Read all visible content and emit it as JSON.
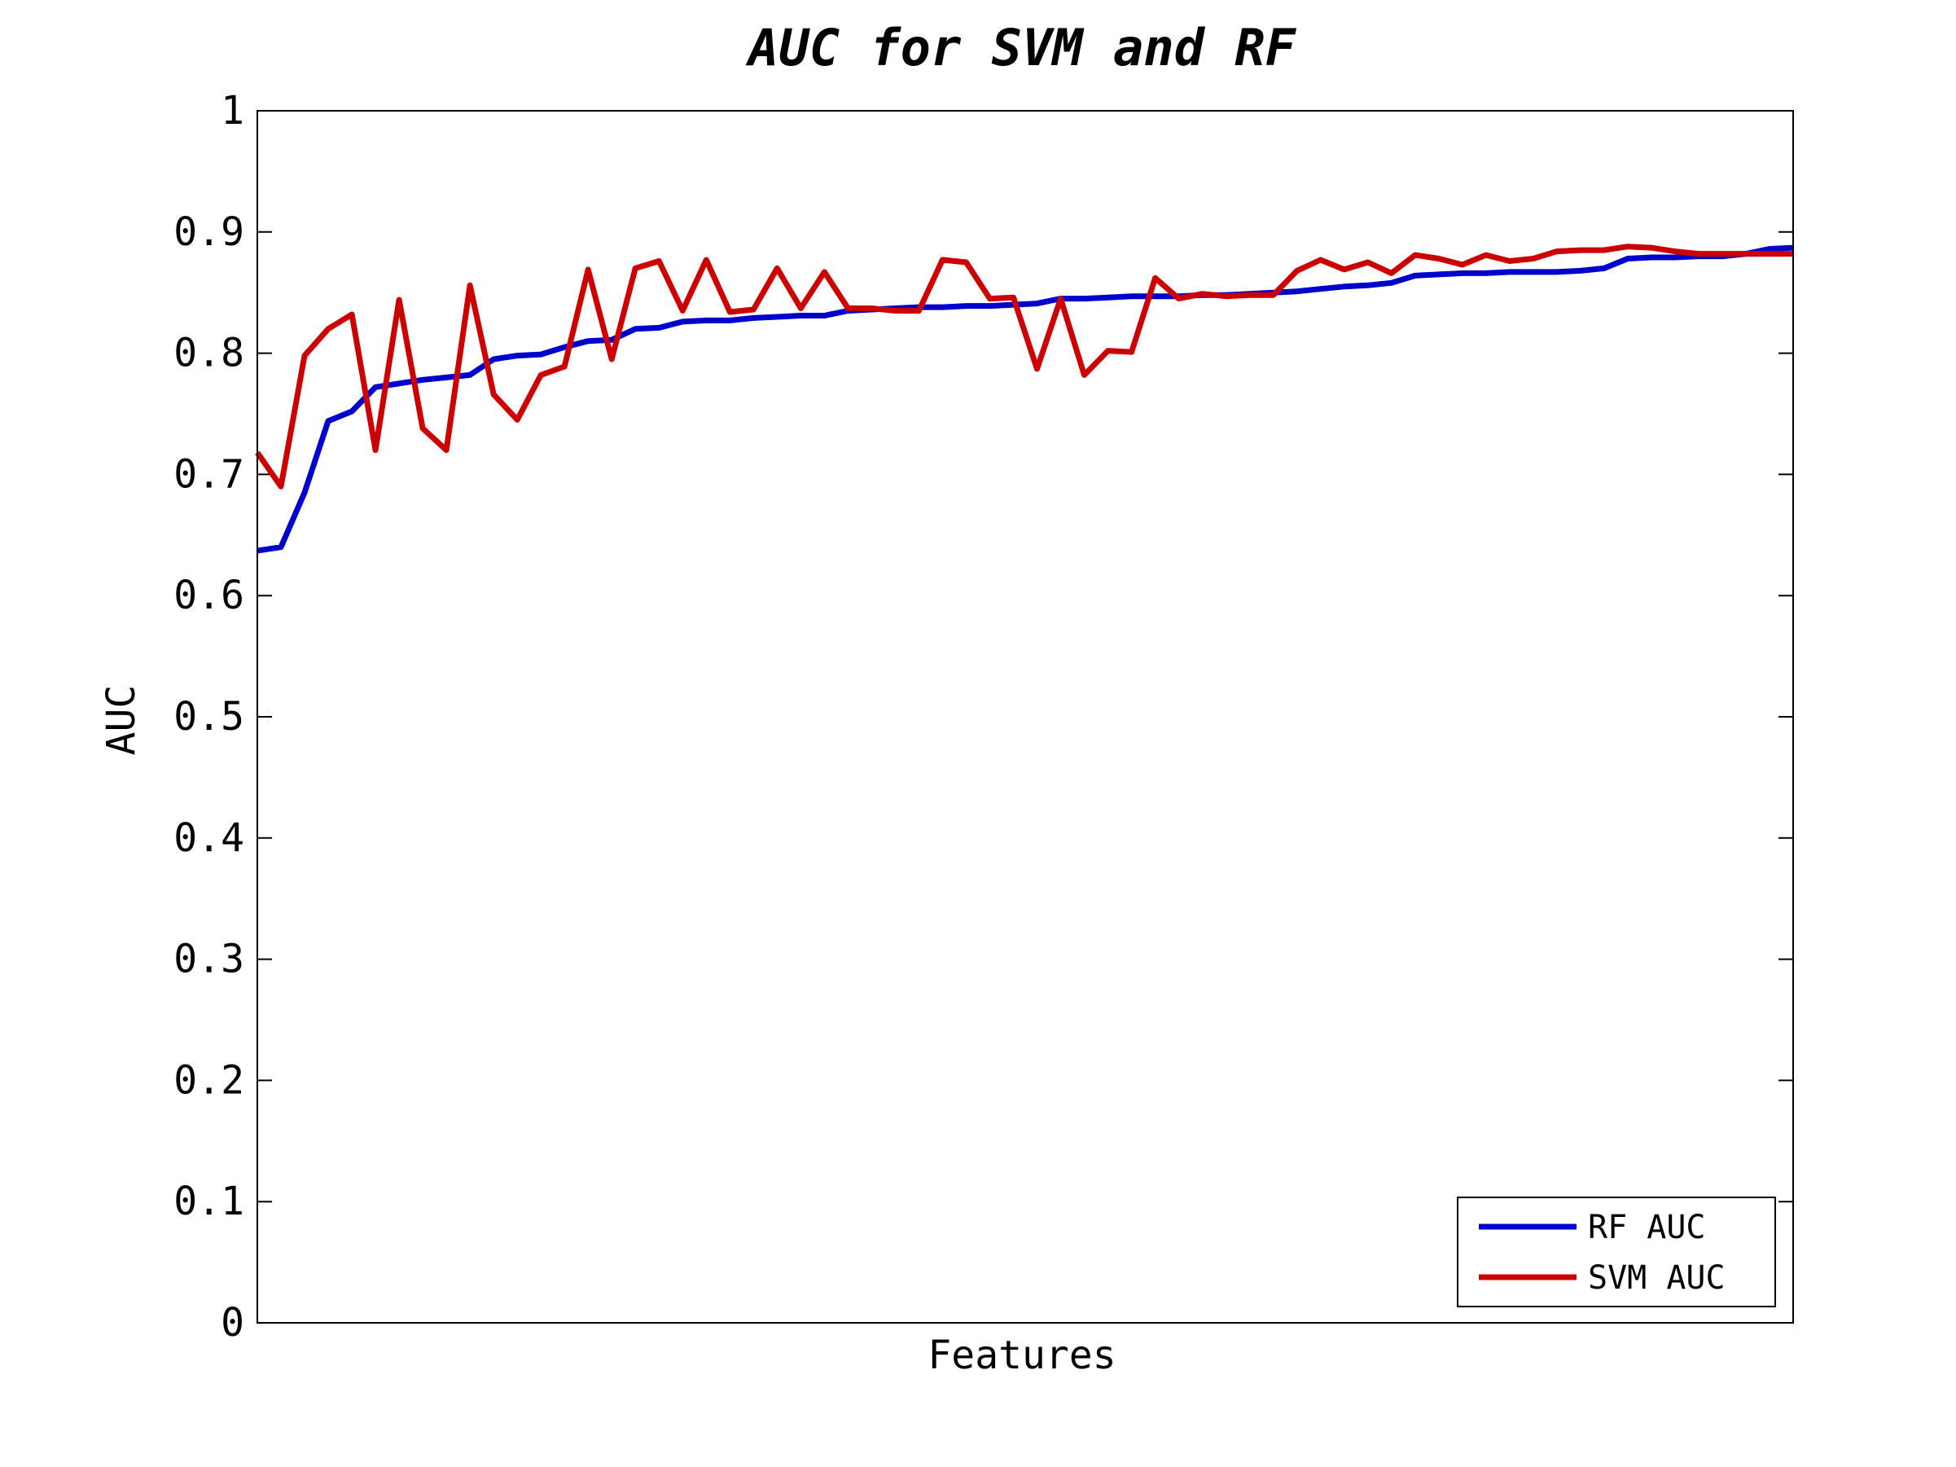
{
  "chart_data": {
    "type": "line",
    "title": "AUC for SVM and RF",
    "xlabel": "Features",
    "ylabel": "AUC",
    "ylim": [
      0,
      1
    ],
    "yticks": [
      "0",
      "0.1",
      "0.2",
      "0.3",
      "0.4",
      "0.5",
      "0.6",
      "0.7",
      "0.8",
      "0.9",
      "1"
    ],
    "grid": false,
    "legend": "bottom-right",
    "series": [
      {
        "name": "RF AUC",
        "color": "#0000cc",
        "values": [
          0.637,
          0.64,
          0.685,
          0.744,
          0.752,
          0.772,
          0.775,
          0.778,
          0.78,
          0.782,
          0.795,
          0.798,
          0.799,
          0.805,
          0.81,
          0.811,
          0.82,
          0.821,
          0.826,
          0.827,
          0.827,
          0.829,
          0.83,
          0.831,
          0.831,
          0.835,
          0.836,
          0.837,
          0.838,
          0.838,
          0.839,
          0.839,
          0.84,
          0.841,
          0.845,
          0.845,
          0.846,
          0.847,
          0.847,
          0.847,
          0.848,
          0.848,
          0.849,
          0.85,
          0.851,
          0.853,
          0.855,
          0.856,
          0.858,
          0.864,
          0.865,
          0.866,
          0.866,
          0.867,
          0.867,
          0.867,
          0.868,
          0.87,
          0.878,
          0.879,
          0.879,
          0.88,
          0.88,
          0.882,
          0.886,
          0.887
        ]
      },
      {
        "name": "SVM AUC",
        "color": "#cc0000",
        "values": [
          0.718,
          0.69,
          0.798,
          0.82,
          0.832,
          0.72,
          0.844,
          0.738,
          0.72,
          0.856,
          0.766,
          0.745,
          0.782,
          0.789,
          0.869,
          0.795,
          0.87,
          0.876,
          0.835,
          0.877,
          0.834,
          0.836,
          0.87,
          0.837,
          0.867,
          0.837,
          0.837,
          0.835,
          0.835,
          0.877,
          0.875,
          0.845,
          0.846,
          0.787,
          0.845,
          0.782,
          0.802,
          0.801,
          0.862,
          0.845,
          0.849,
          0.847,
          0.848,
          0.848,
          0.868,
          0.877,
          0.869,
          0.875,
          0.866,
          0.881,
          0.878,
          0.873,
          0.881,
          0.876,
          0.878,
          0.884,
          0.885,
          0.885,
          0.888,
          0.887,
          0.884,
          0.882,
          0.882,
          0.882,
          0.882,
          0.882
        ]
      }
    ]
  }
}
